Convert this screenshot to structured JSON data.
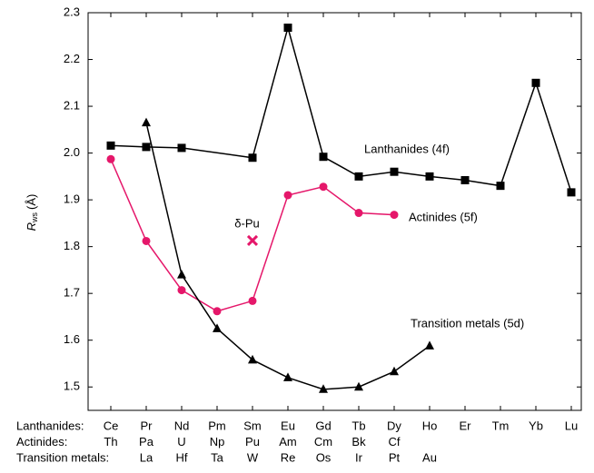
{
  "chart_data": {
    "type": "line",
    "ylabel": {
      "main": "R",
      "sub": "ws",
      "unit": "(Å)"
    },
    "ylim": [
      1.45,
      2.3
    ],
    "yticks": [
      1.5,
      1.6,
      1.7,
      1.8,
      1.9,
      {
        "value": 2,
        "label": "2.0"
      },
      2.1,
      2.2,
      2.3
    ],
    "connect_gaps": true,
    "category_rows": [
      {
        "name": "Lanthanides:",
        "color": "#000000",
        "labels": [
          "Ce",
          "Pr",
          "Nd",
          "Pm",
          "Sm",
          "Eu",
          "Gd",
          "Tb",
          "Dy",
          "Ho",
          "Er",
          "Tm",
          "Yb",
          "Lu"
        ]
      },
      {
        "name": "Actinides:",
        "color": "#e5176a",
        "labels": [
          "Th",
          "Pa",
          "U",
          "Np",
          "Pu",
          "Am",
          "Cm",
          "Bk",
          "Cf",
          null,
          null,
          null,
          null,
          null
        ]
      },
      {
        "name": "Transition metals:",
        "color": "#000000",
        "labels": [
          null,
          "La",
          "Hf",
          "Ta",
          "W",
          "Re",
          "Os",
          "Ir",
          "Pt",
          "Au",
          null,
          null,
          null,
          null
        ]
      }
    ],
    "series": [
      {
        "name": "Lanthanides (4f)",
        "color": "#000000",
        "marker": "square",
        "values": [
          2.016,
          2.013,
          2.011,
          null,
          1.99,
          2.268,
          1.992,
          1.95,
          1.96,
          1.95,
          1.942,
          1.93,
          2.15,
          1.916
        ]
      },
      {
        "name": "Actinides (5f)",
        "color": "#e5176a",
        "marker": "circle",
        "values": [
          1.987,
          1.812,
          1.707,
          1.662,
          1.684,
          1.91,
          1.928,
          1.872,
          1.868,
          null,
          null,
          null,
          null,
          null
        ]
      },
      {
        "name": "Transition metals (5d)",
        "color": "#000000",
        "marker": "triangle",
        "values": [
          null,
          2.065,
          1.74,
          1.625,
          1.558,
          1.52,
          1.495,
          1.5,
          1.533,
          1.588,
          null,
          null,
          null,
          null
        ]
      },
      {
        "name": "δ-Pu",
        "color": "#e5176a",
        "marker": "x",
        "values": [
          null,
          null,
          null,
          null,
          1.813,
          null,
          null,
          null,
          null,
          null,
          null,
          null,
          null,
          null
        ]
      }
    ]
  }
}
